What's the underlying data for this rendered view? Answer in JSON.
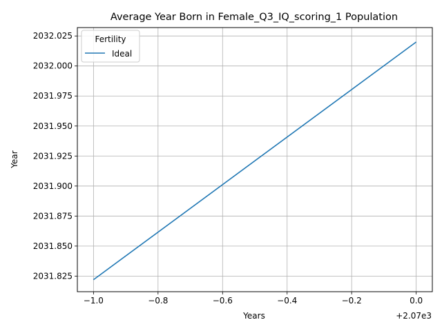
{
  "chart_data": {
    "type": "line",
    "title": "Average Year Born in Female_Q3_IQ_scoring_1 Population",
    "xlabel": "Years",
    "ylabel": "Year",
    "x_offset_label": "+2.07e3",
    "x_tick_labels": [
      "−1.0",
      "−0.8",
      "−0.6",
      "−0.4",
      "−0.2",
      "0.0"
    ],
    "y_tick_labels": [
      "2031.825",
      "2031.850",
      "2031.875",
      "2031.900",
      "2031.925",
      "2031.950",
      "2031.975",
      "2032.000",
      "2032.025"
    ],
    "x_ticks": [
      2069,
      2069.2,
      2069.4,
      2069.6,
      2069.8,
      2070
    ],
    "y_ticks": [
      2031.825,
      2031.85,
      2031.875,
      2031.9,
      2031.925,
      2031.95,
      2031.975,
      2032.0,
      2032.025
    ],
    "xlim": [
      2068.95,
      2070.05
    ],
    "ylim": [
      2031.812,
      2032.032
    ],
    "grid": true,
    "legend": {
      "title": "Fertility",
      "placement": "top-left"
    },
    "series": [
      {
        "name": "Ideal",
        "color": "#1f77b4",
        "x": [
          2069,
          2070
        ],
        "y": [
          2031.822,
          2032.02
        ]
      }
    ]
  }
}
